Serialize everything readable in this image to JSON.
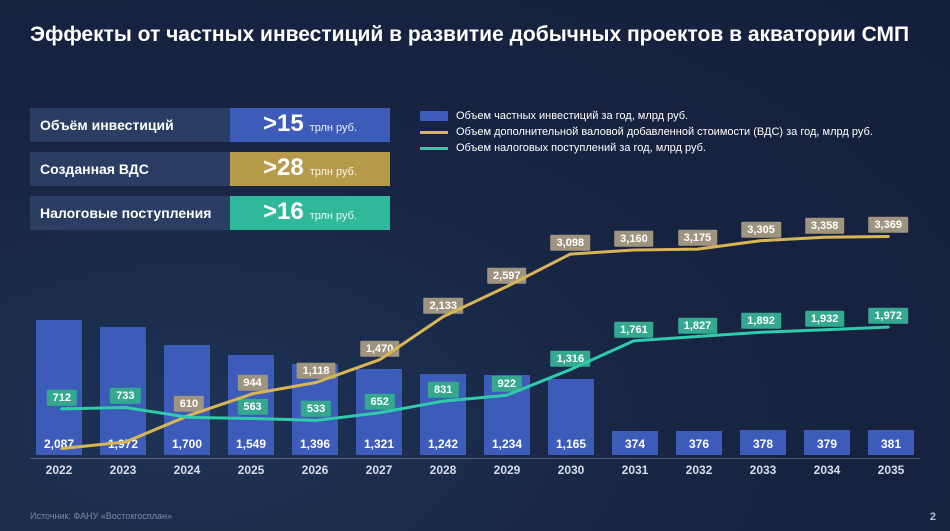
{
  "title": "Эффекты от частных инвестиций в развитие добычных проектов в акватории СМП",
  "kpis": [
    {
      "label": "Объём инвестиций",
      "value": ">15",
      "unit": "трлн руб.",
      "color": "#3d5bb8"
    },
    {
      "label": "Созданная ВДС",
      "value": ">28",
      "unit": "трлн руб.",
      "color": "#b89b4a"
    },
    {
      "label": "Налоговые поступления",
      "value": ">16",
      "unit": "трлн руб.",
      "color": "#2fb89a"
    }
  ],
  "legend": [
    {
      "swatch": "bar",
      "color": "#3d5bb8",
      "text": "Объем частных инвестиций за год, млрд руб."
    },
    {
      "swatch": "line",
      "color": "#d9b654",
      "text": "Объем дополнительной валовой добавленной стоимости (ВДС) за год, млрд руб."
    },
    {
      "swatch": "line",
      "color": "#2fccab",
      "text": "Объем налоговых поступлений за год, млрд руб."
    }
  ],
  "chart": {
    "ymax": 3500,
    "years": [
      2022,
      2023,
      2024,
      2025,
      2026,
      2027,
      2028,
      2029,
      2030,
      2031,
      2032,
      2033,
      2034,
      2035
    ],
    "bars": [
      2087,
      1972,
      1700,
      1549,
      1396,
      1321,
      1242,
      1234,
      1165,
      374,
      376,
      378,
      379,
      381
    ],
    "bars_display": [
      "2,087",
      "1,972",
      "1,700",
      "1,549",
      "1,396",
      "1,321",
      "1,242",
      "1,234",
      "1,165",
      "374",
      "376",
      "378",
      "379",
      "381"
    ],
    "bar_color": "#3d5bb8",
    "lines": [
      {
        "name": "vds",
        "color": "#d9b654",
        "label_bg": "#9f9480",
        "values": [
          100,
          200,
          610,
          944,
          1118,
          1470,
          2133,
          2597,
          3098,
          3160,
          3175,
          3305,
          3358,
          3369
        ],
        "labels": [
          null,
          null,
          "610",
          "944",
          "1,118",
          "1,470",
          "2,133",
          "2,597",
          "3,098",
          "3,160",
          "3,175",
          "3,305",
          "3,358",
          "3,369"
        ]
      },
      {
        "name": "tax",
        "color": "#2fccab",
        "label_bg": "#35a98f",
        "values": [
          712,
          733,
          580,
          563,
          533,
          652,
          831,
          922,
          1316,
          1761,
          1827,
          1892,
          1932,
          1972
        ],
        "labels": [
          "712",
          "733",
          null,
          "563",
          "533",
          "652",
          "831",
          "922",
          "1,316",
          "1,761",
          "1,827",
          "1,892",
          "1,932",
          "1,972"
        ]
      }
    ]
  },
  "source": "Источник: ФАНУ «Востокгосплан»",
  "page": "2"
}
